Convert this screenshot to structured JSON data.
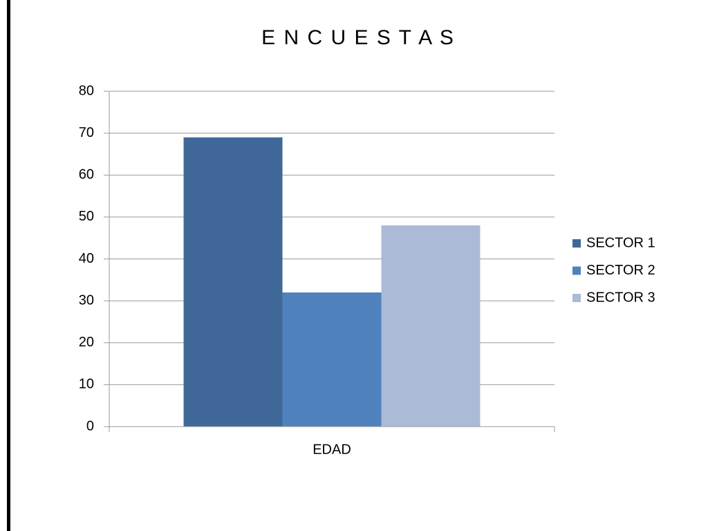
{
  "chart_data": {
    "type": "bar",
    "title": "E N C U E S T A S",
    "categories": [
      "EDAD"
    ],
    "series": [
      {
        "name": "SECTOR 1",
        "color": "#3f6898",
        "values": [
          69
        ]
      },
      {
        "name": "SECTOR 2",
        "color": "#4f81bd",
        "values": [
          32
        ]
      },
      {
        "name": "SECTOR 3",
        "color": "#aabad7",
        "values": [
          48
        ]
      }
    ],
    "ylim": [
      0,
      80
    ],
    "yticks": [
      0,
      10,
      20,
      30,
      40,
      50,
      60,
      70,
      80
    ],
    "grid": true,
    "legend": "right"
  }
}
